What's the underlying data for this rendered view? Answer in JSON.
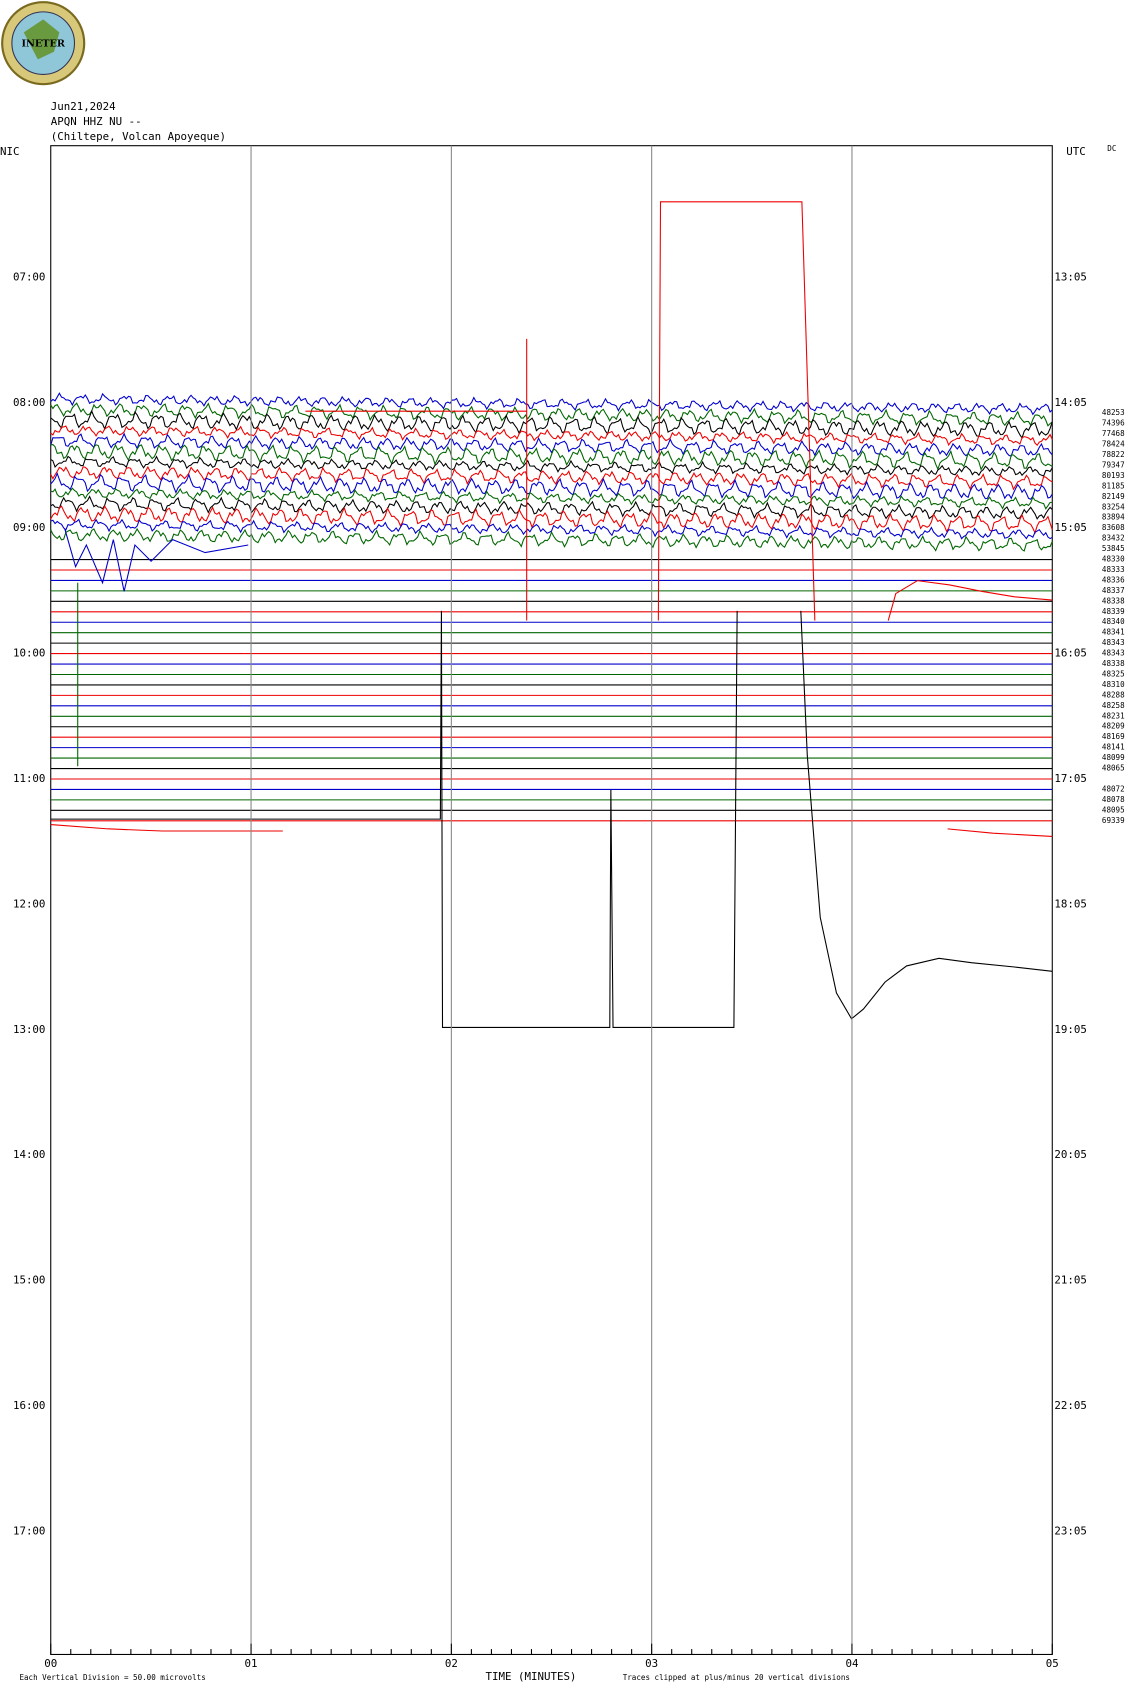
{
  "header": {
    "date": "Jun21,2024",
    "station": "APQN HHZ NU --",
    "location": "(Chiltepe, Volcan Apoyeque)",
    "logo": "INETER"
  },
  "left_axis": {
    "title": "NIC",
    "labels": [
      "07:00",
      "08:00",
      "09:00",
      "10:00",
      "11:00",
      "12:00",
      "13:00",
      "14:00",
      "15:00",
      "16:00",
      "17:00"
    ]
  },
  "right_axis": {
    "title": "UTC",
    "labels": [
      "13:05",
      "14:05",
      "15:05",
      "16:05",
      "17:05",
      "18:05",
      "19:05",
      "20:05",
      "21:05",
      "22:05",
      "23:05"
    ],
    "dc_title": "DC",
    "dc_values": [
      48253,
      74396,
      77468,
      78424,
      78822,
      79347,
      80193,
      81185,
      82149,
      83254,
      83894,
      83608,
      83432,
      53845,
      48330,
      48333,
      48336,
      48337,
      48338,
      48339,
      48340,
      48341,
      48343,
      48343,
      48338,
      48325,
      48310,
      48288,
      48258,
      48231,
      48209,
      48169,
      48141,
      48099,
      48065,
      null,
      48072,
      48078,
      48095,
      69339
    ]
  },
  "x_axis": {
    "title": "TIME (MINUTES)",
    "labels": [
      "00",
      "01",
      "02",
      "03",
      "04",
      "05"
    ]
  },
  "footer": {
    "scale": "Each Vertical Division =   50.00 microvolts",
    "clip": "Traces clipped at plus/minus 20 vertical divisions"
  }
}
